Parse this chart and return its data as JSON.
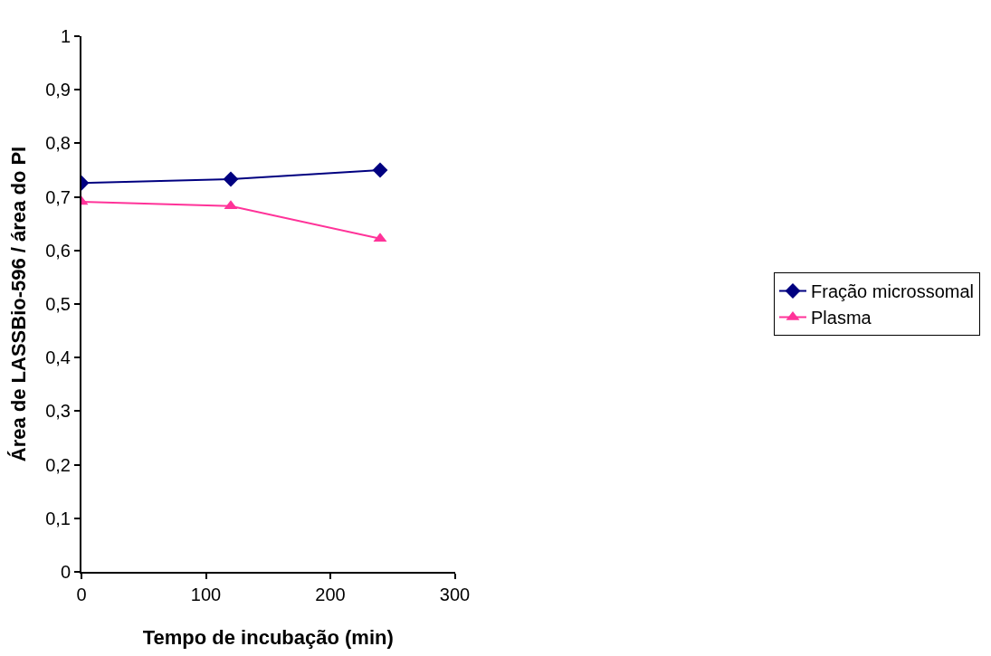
{
  "chart_data": {
    "type": "line",
    "xlabel": "Tempo de incubação (min)",
    "ylabel": "Área de LASSBio-596 / área do PI",
    "x": [
      0,
      120,
      240
    ],
    "series": [
      {
        "name": "Fração microssomal",
        "color": "#000080",
        "marker": "diamond",
        "values": [
          0.726,
          0.733,
          0.75
        ]
      },
      {
        "name": "Plasma",
        "color": "#ff3399",
        "marker": "triangle",
        "values": [
          0.691,
          0.683,
          0.622
        ]
      }
    ],
    "xlim": [
      0,
      300
    ],
    "xticks": [
      0,
      100,
      200,
      300
    ],
    "ylim": [
      0,
      1
    ],
    "yticks": [
      0,
      {
        "value": 0.1,
        "label": "0,1"
      },
      {
        "value": 0.2,
        "label": "0,2"
      },
      {
        "value": 0.3,
        "label": "0,3"
      },
      {
        "value": 0.4,
        "label": "0,4"
      },
      {
        "value": 0.5,
        "label": "0,5"
      },
      {
        "value": 0.6,
        "label": "0,6"
      },
      {
        "value": 0.7,
        "label": "0,7"
      },
      {
        "value": 0.8,
        "label": "0,8"
      },
      {
        "value": 0.9,
        "label": "0,9"
      },
      1
    ],
    "legend": "right",
    "line_style": "solid"
  }
}
